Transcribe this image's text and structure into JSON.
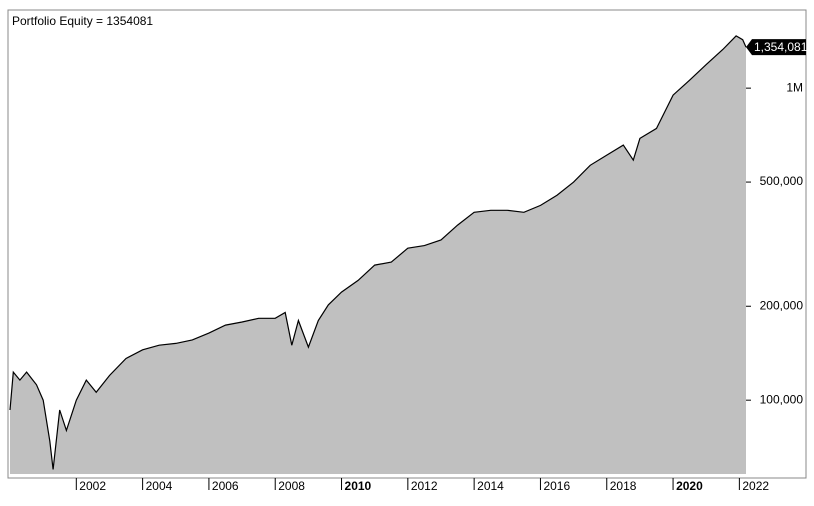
{
  "chart_data": {
    "type": "area",
    "title": "Portfolio Equity = 1354081",
    "x": [
      2000.0,
      2000.1,
      2000.3,
      2000.5,
      2000.8,
      2001.0,
      2001.2,
      2001.3,
      2001.5,
      2001.7,
      2002.0,
      2002.3,
      2002.6,
      2003.0,
      2003.5,
      2004.0,
      2004.5,
      2005.0,
      2005.5,
      2006.0,
      2006.5,
      2007.0,
      2007.5,
      2008.0,
      2008.3,
      2008.5,
      2008.7,
      2009.0,
      2009.3,
      2009.6,
      2010.0,
      2010.5,
      2011.0,
      2011.5,
      2012.0,
      2012.5,
      2013.0,
      2013.5,
      2014.0,
      2014.5,
      2015.0,
      2015.5,
      2016.0,
      2016.5,
      2017.0,
      2017.5,
      2018.0,
      2018.5,
      2018.8,
      2019.0,
      2019.5,
      2020.0,
      2020.5,
      2021.0,
      2021.5,
      2021.9,
      2022.1,
      2022.2
    ],
    "series": [
      {
        "name": "Portfolio Equity",
        "color": "#000000",
        "fill": "#c0c0c0",
        "values": [
          93000,
          123000,
          116000,
          123000,
          112000,
          100000,
          74000,
          60000,
          93000,
          80000,
          100000,
          116000,
          106000,
          120000,
          136000,
          145000,
          150000,
          152000,
          156000,
          164000,
          174000,
          178000,
          183000,
          183000,
          191000,
          150000,
          180000,
          148000,
          180000,
          202000,
          222000,
          242000,
          271000,
          277000,
          307000,
          313000,
          326000,
          364000,
          400000,
          406000,
          406000,
          400000,
          421000,
          454000,
          500000,
          566000,
          610000,
          657000,
          588000,
          690000,
          743000,
          950000,
          1060000,
          1190000,
          1330000,
          1470000,
          1430000,
          1354081
        ],
        "value_labels": [
          null,
          null,
          null,
          null,
          null,
          null,
          null,
          null,
          null,
          null,
          null,
          null,
          null,
          null,
          null,
          null,
          null,
          null,
          null,
          null,
          null,
          null,
          null,
          null,
          null,
          null,
          null,
          null,
          null,
          null,
          null,
          null,
          null,
          null,
          null,
          null,
          null,
          null,
          null,
          null,
          null,
          null,
          null,
          null,
          null,
          null,
          null,
          null,
          null,
          null,
          null,
          null,
          null,
          null,
          null,
          null,
          null,
          "1,354,081"
        ]
      }
    ],
    "xlim": [
      2000,
      2022.2
    ],
    "xticks": [
      2002,
      2004,
      2006,
      2008,
      2010,
      2012,
      2014,
      2016,
      2018,
      2020,
      2022
    ],
    "ylim": [
      58000,
      1780000
    ],
    "log_y": true,
    "yticks": [
      {
        "value": 100000,
        "label": "100,000"
      },
      {
        "value": 200000,
        "label": "200,000"
      },
      {
        "value": 500000,
        "label": "500,000"
      },
      {
        "value": 1000000,
        "label": "1M"
      }
    ]
  }
}
